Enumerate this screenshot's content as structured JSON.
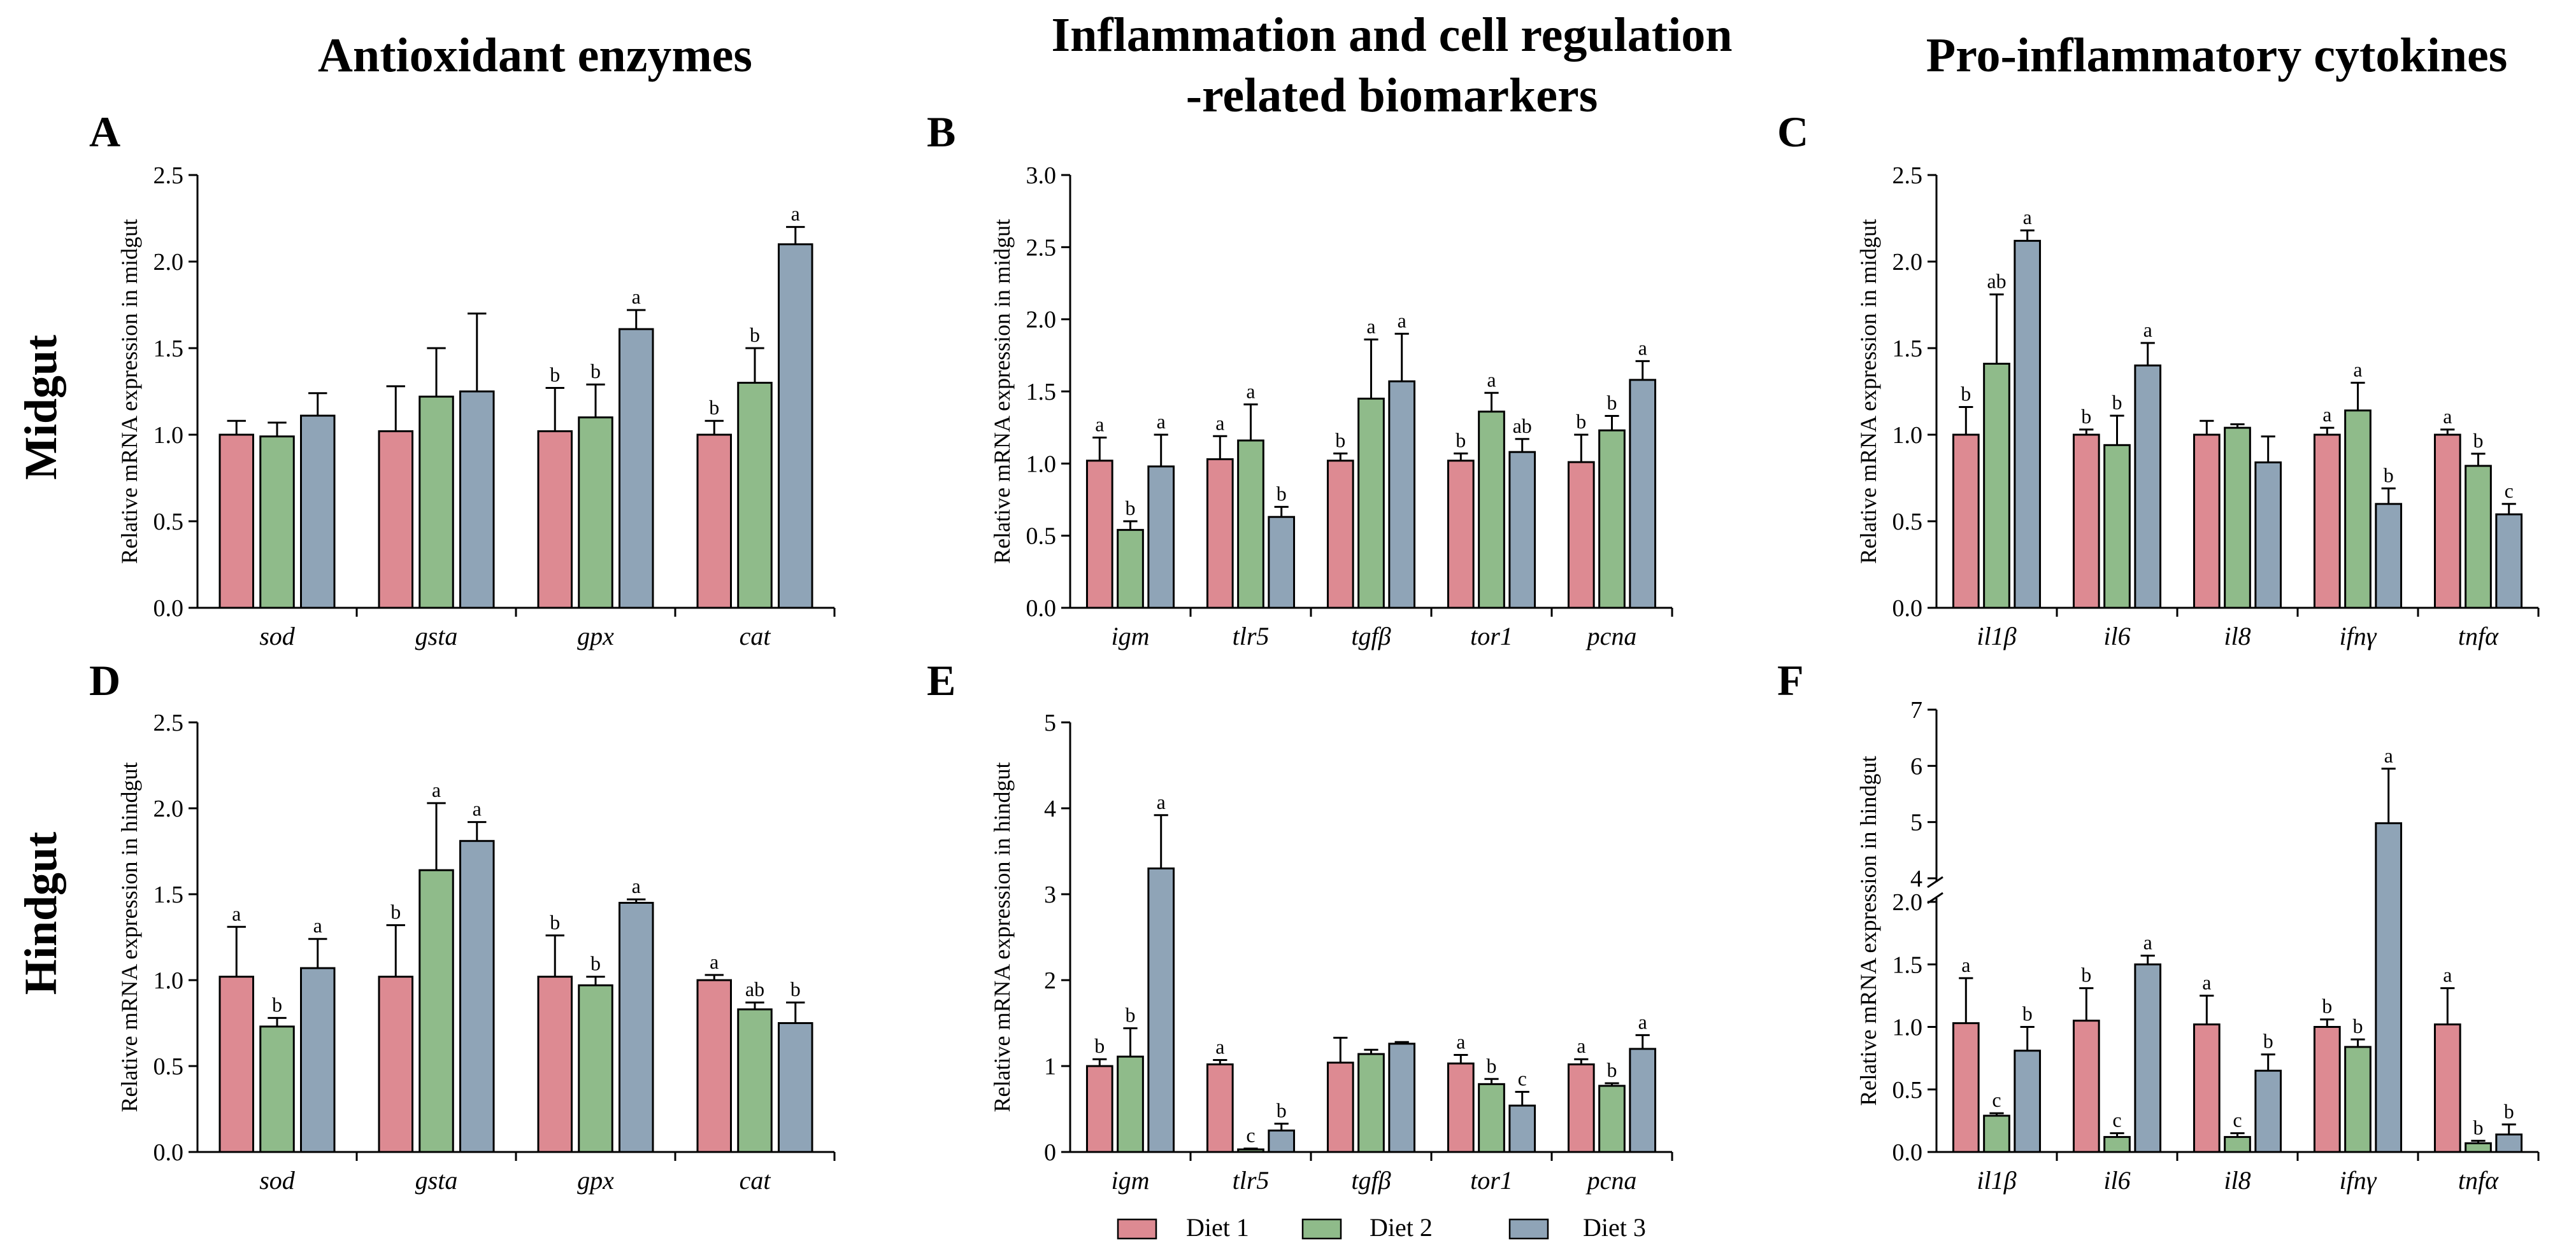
{
  "column_titles": {
    "antioxidant": "Antioxidant enzymes",
    "inflammation_line1": "Inflammation and cell regulation",
    "inflammation_line2": "-related biomarkers",
    "cytokines": "Pro-inflammatory cytokines"
  },
  "row_labels": {
    "midgut": "Midgut",
    "hindgut": "Hindgut"
  },
  "legend": [
    {
      "name": "Diet 1",
      "color": "#dd8a92"
    },
    {
      "name": "Diet 2",
      "color": "#8fbb8a"
    },
    {
      "name": "Diet 3",
      "color": "#8fa4b7"
    }
  ],
  "chart_data": [
    {
      "panel": "A",
      "type": "bar",
      "ylabel": "Relative mRNA expression in midgut",
      "ylim": [
        0,
        2.5
      ],
      "yticks": [
        "0.0",
        "0.5",
        "1.0",
        "1.5",
        "2.0",
        "2.5"
      ],
      "categories": [
        "sod",
        "gsta",
        "gpx",
        "cat"
      ],
      "series": [
        {
          "name": "Diet 1",
          "values": [
            1.0,
            1.02,
            1.02,
            1.0
          ],
          "errors": [
            0.08,
            0.26,
            0.25,
            0.08
          ],
          "labels": [
            "",
            "",
            "b",
            "b"
          ]
        },
        {
          "name": "Diet 2",
          "values": [
            0.99,
            1.22,
            1.1,
            1.3
          ],
          "errors": [
            0.08,
            0.28,
            0.19,
            0.2
          ],
          "labels": [
            "",
            "",
            "b",
            "b"
          ]
        },
        {
          "name": "Diet 3",
          "values": [
            1.11,
            1.25,
            1.61,
            2.1
          ],
          "errors": [
            0.13,
            0.45,
            0.11,
            0.1
          ],
          "labels": [
            "",
            "",
            "a",
            "a"
          ]
        }
      ]
    },
    {
      "panel": "B",
      "type": "bar",
      "ylabel": "Relative mRNA expression in midgut",
      "ylim": [
        0,
        3.0
      ],
      "yticks": [
        "0.0",
        "0.5",
        "1.0",
        "1.5",
        "2.0",
        "2.5",
        "3.0"
      ],
      "categories": [
        "igm",
        "tlr5",
        "tgfβ",
        "tor1",
        "pcna"
      ],
      "series": [
        {
          "name": "Diet 1",
          "values": [
            1.02,
            1.03,
            1.02,
            1.02,
            1.01
          ],
          "errors": [
            0.16,
            0.16,
            0.05,
            0.05,
            0.19
          ],
          "labels": [
            "a",
            "a",
            "b",
            "b",
            "b"
          ]
        },
        {
          "name": "Diet 2",
          "values": [
            0.54,
            1.16,
            1.45,
            1.36,
            1.23
          ],
          "errors": [
            0.06,
            0.25,
            0.41,
            0.13,
            0.1
          ],
          "labels": [
            "b",
            "a",
            "a",
            "a",
            "b"
          ]
        },
        {
          "name": "Diet 3",
          "values": [
            0.98,
            0.63,
            1.57,
            1.08,
            1.58
          ],
          "errors": [
            0.22,
            0.07,
            0.33,
            0.09,
            0.13
          ],
          "labels": [
            "a",
            "b",
            "a",
            "ab",
            "a"
          ]
        }
      ]
    },
    {
      "panel": "C",
      "type": "bar",
      "ylabel": "Relative mRNA expression in midgut",
      "ylim": [
        0,
        2.5
      ],
      "yticks": [
        "0.0",
        "0.5",
        "1.0",
        "1.5",
        "2.0",
        "2.5"
      ],
      "categories": [
        "il1β",
        "il6",
        "il8",
        "ifnγ",
        "tnfα"
      ],
      "series": [
        {
          "name": "Diet 1",
          "values": [
            1.0,
            1.0,
            1.0,
            1.0,
            1.0
          ],
          "errors": [
            0.16,
            0.03,
            0.08,
            0.04,
            0.03
          ],
          "labels": [
            "b",
            "b",
            "",
            "a",
            "a"
          ]
        },
        {
          "name": "Diet 2",
          "values": [
            1.41,
            0.94,
            1.04,
            1.14,
            0.82
          ],
          "errors": [
            0.4,
            0.17,
            0.02,
            0.16,
            0.07
          ],
          "labels": [
            "ab",
            "b",
            "",
            "a",
            "b"
          ]
        },
        {
          "name": "Diet 3",
          "values": [
            2.12,
            1.4,
            0.84,
            0.6,
            0.54
          ],
          "errors": [
            0.06,
            0.13,
            0.15,
            0.09,
            0.06
          ],
          "labels": [
            "a",
            "a",
            "",
            "b",
            "c"
          ]
        }
      ]
    },
    {
      "panel": "D",
      "type": "bar",
      "ylabel": "Relative mRNA expression in hindgut",
      "ylim": [
        0,
        2.5
      ],
      "yticks": [
        "0.0",
        "0.5",
        "1.0",
        "1.5",
        "2.0",
        "2.5"
      ],
      "categories": [
        "sod",
        "gsta",
        "gpx",
        "cat"
      ],
      "series": [
        {
          "name": "Diet 1",
          "values": [
            1.02,
            1.02,
            1.02,
            1.0
          ],
          "errors": [
            0.29,
            0.3,
            0.24,
            0.03
          ],
          "labels": [
            "a",
            "b",
            "b",
            "a"
          ]
        },
        {
          "name": "Diet 2",
          "values": [
            0.73,
            1.64,
            0.97,
            0.83
          ],
          "errors": [
            0.05,
            0.39,
            0.05,
            0.04
          ],
          "labels": [
            "b",
            "a",
            "b",
            "ab"
          ]
        },
        {
          "name": "Diet 3",
          "values": [
            1.07,
            1.81,
            1.45,
            0.75
          ],
          "errors": [
            0.17,
            0.11,
            0.02,
            0.12
          ],
          "labels": [
            "a",
            "a",
            "a",
            "b"
          ]
        }
      ]
    },
    {
      "panel": "E",
      "type": "bar",
      "ylabel": "Relative mRNA expression in hindgut",
      "ylim": [
        0,
        5
      ],
      "yticks": [
        "0",
        "1",
        "2",
        "3",
        "4",
        "5"
      ],
      "categories": [
        "igm",
        "tlr5",
        "tgfβ",
        "tor1",
        "pcna"
      ],
      "series": [
        {
          "name": "Diet 1",
          "values": [
            1.0,
            1.02,
            1.04,
            1.03,
            1.02
          ],
          "errors": [
            0.08,
            0.05,
            0.29,
            0.1,
            0.06
          ],
          "labels": [
            "b",
            "a",
            "",
            "a",
            "a"
          ]
        },
        {
          "name": "Diet 2",
          "values": [
            1.11,
            0.03,
            1.14,
            0.79,
            0.77
          ],
          "errors": [
            0.33,
            0.01,
            0.05,
            0.06,
            0.03
          ],
          "labels": [
            "b",
            "c",
            "",
            "b",
            "b"
          ]
        },
        {
          "name": "Diet 3",
          "values": [
            3.3,
            0.25,
            1.26,
            0.54,
            1.2
          ],
          "errors": [
            0.62,
            0.08,
            0.02,
            0.16,
            0.16
          ],
          "labels": [
            "a",
            "b",
            "",
            "c",
            "a"
          ]
        }
      ]
    },
    {
      "panel": "F",
      "type": "bar",
      "ylabel": "Relative mRNA expression in hindgut",
      "ylim_lower": [
        0,
        2.0
      ],
      "ylim_upper": [
        4,
        7
      ],
      "yticks_lower": [
        "0.0",
        "0.5",
        "1.0",
        "1.5",
        "2.0"
      ],
      "yticks_upper": [
        "4",
        "5",
        "6",
        "7"
      ],
      "axis_break": true,
      "categories": [
        "il1β",
        "il6",
        "il8",
        "ifnγ",
        "tnfα"
      ],
      "series": [
        {
          "name": "Diet 1",
          "values": [
            1.03,
            1.05,
            1.02,
            1.0,
            1.02
          ],
          "errors": [
            0.36,
            0.26,
            0.23,
            0.06,
            0.29
          ],
          "labels": [
            "a",
            "b",
            "a",
            "b",
            "a"
          ]
        },
        {
          "name": "Diet 2",
          "values": [
            0.29,
            0.12,
            0.12,
            0.84,
            0.07
          ],
          "errors": [
            0.02,
            0.03,
            0.03,
            0.06,
            0.02
          ],
          "labels": [
            "c",
            "c",
            "c",
            "b",
            "b"
          ]
        },
        {
          "name": "Diet 3",
          "values": [
            0.81,
            1.5,
            0.65,
            4.98,
            0.14
          ],
          "errors": [
            0.19,
            0.07,
            0.13,
            0.97,
            0.08
          ],
          "labels": [
            "b",
            "a",
            "b",
            "a",
            "b"
          ]
        }
      ]
    }
  ]
}
